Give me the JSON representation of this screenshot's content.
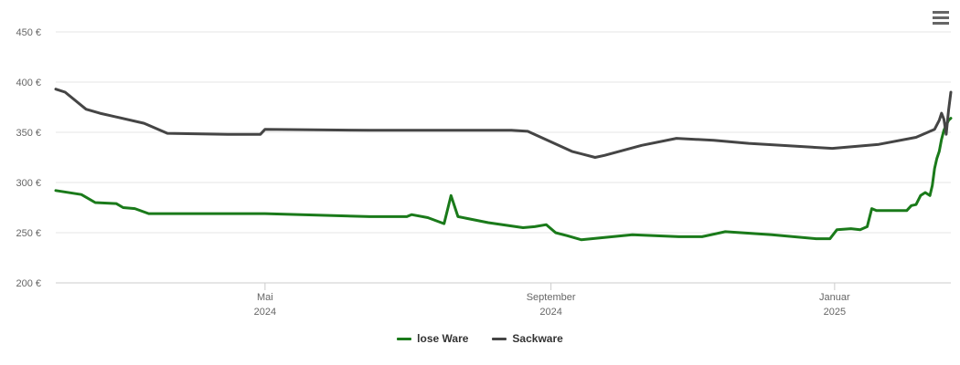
{
  "chart_data": {
    "type": "line",
    "y_unit": "€",
    "ylim": [
      200,
      450
    ],
    "y_ticks": [
      {
        "value": 200,
        "label": "200 €"
      },
      {
        "value": 250,
        "label": "250 €"
      },
      {
        "value": 300,
        "label": "300 €"
      },
      {
        "value": 350,
        "label": "350 €"
      },
      {
        "value": 400,
        "label": "400 €"
      },
      {
        "value": 450,
        "label": "450 €"
      }
    ],
    "xlim": [
      "2024-02-01",
      "2025-02-20"
    ],
    "x_ticks": [
      {
        "date": "2024-05-01",
        "month": "Mai",
        "year": "2024"
      },
      {
        "date": "2024-09-01",
        "month": "September",
        "year": "2024"
      },
      {
        "date": "2025-01-01",
        "month": "Januar",
        "year": "2025"
      }
    ],
    "grid": "horizontal",
    "legend_position": "bottom-center",
    "series": [
      {
        "name": "lose Ware",
        "color": "#1a7a1a",
        "points": [
          [
            "2024-02-01",
            292
          ],
          [
            "2024-02-12",
            288
          ],
          [
            "2024-02-18",
            280
          ],
          [
            "2024-02-27",
            279
          ],
          [
            "2024-03-01",
            275
          ],
          [
            "2024-03-06",
            274
          ],
          [
            "2024-03-12",
            269
          ],
          [
            "2024-05-01",
            269
          ],
          [
            "2024-06-15",
            266
          ],
          [
            "2024-07-01",
            266
          ],
          [
            "2024-07-03",
            268
          ],
          [
            "2024-07-10",
            265
          ],
          [
            "2024-07-17",
            259
          ],
          [
            "2024-07-20",
            287
          ],
          [
            "2024-07-23",
            266
          ],
          [
            "2024-08-05",
            260
          ],
          [
            "2024-08-20",
            255
          ],
          [
            "2024-08-25",
            256
          ],
          [
            "2024-08-30",
            258
          ],
          [
            "2024-09-03",
            250
          ],
          [
            "2024-09-08",
            247
          ],
          [
            "2024-09-14",
            243
          ],
          [
            "2024-10-06",
            248
          ],
          [
            "2024-10-26",
            246
          ],
          [
            "2024-11-05",
            246
          ],
          [
            "2024-11-15",
            251
          ],
          [
            "2024-12-05",
            248
          ],
          [
            "2024-12-24",
            244
          ],
          [
            "2024-12-30",
            244
          ],
          [
            "2025-01-02",
            253
          ],
          [
            "2025-01-08",
            254
          ],
          [
            "2025-01-12",
            253
          ],
          [
            "2025-01-15",
            256
          ],
          [
            "2025-01-17",
            274
          ],
          [
            "2025-01-19",
            272
          ],
          [
            "2025-02-01",
            272
          ],
          [
            "2025-02-03",
            277
          ],
          [
            "2025-02-05",
            278
          ],
          [
            "2025-02-07",
            287
          ],
          [
            "2025-02-09",
            290
          ],
          [
            "2025-02-11",
            287
          ],
          [
            "2025-02-12",
            297
          ],
          [
            "2025-02-13",
            314
          ],
          [
            "2025-02-14",
            324
          ],
          [
            "2025-02-15",
            331
          ],
          [
            "2025-02-16",
            343
          ],
          [
            "2025-02-17",
            352
          ],
          [
            "2025-02-18",
            357
          ],
          [
            "2025-02-19",
            362
          ],
          [
            "2025-02-20",
            364
          ]
        ]
      },
      {
        "name": "Sackware",
        "color": "#454545",
        "points": [
          [
            "2024-02-01",
            393
          ],
          [
            "2024-02-05",
            390
          ],
          [
            "2024-02-14",
            373
          ],
          [
            "2024-02-20",
            369
          ],
          [
            "2024-03-10",
            359
          ],
          [
            "2024-03-20",
            349
          ],
          [
            "2024-04-15",
            348
          ],
          [
            "2024-04-29",
            348
          ],
          [
            "2024-05-01",
            353
          ],
          [
            "2024-06-15",
            352
          ],
          [
            "2024-08-15",
            352
          ],
          [
            "2024-08-22",
            351
          ],
          [
            "2024-09-10",
            331
          ],
          [
            "2024-09-20",
            325
          ],
          [
            "2024-09-24",
            327
          ],
          [
            "2024-10-10",
            337
          ],
          [
            "2024-10-25",
            344
          ],
          [
            "2024-11-10",
            342
          ],
          [
            "2024-11-25",
            339
          ],
          [
            "2024-12-31",
            334
          ],
          [
            "2025-01-20",
            338
          ],
          [
            "2025-02-05",
            345
          ],
          [
            "2025-02-13",
            353
          ],
          [
            "2025-02-15",
            362
          ],
          [
            "2025-02-16",
            369
          ],
          [
            "2025-02-17",
            363
          ],
          [
            "2025-02-18",
            348
          ],
          [
            "2025-02-19",
            372
          ],
          [
            "2025-02-20",
            390
          ]
        ]
      }
    ]
  }
}
